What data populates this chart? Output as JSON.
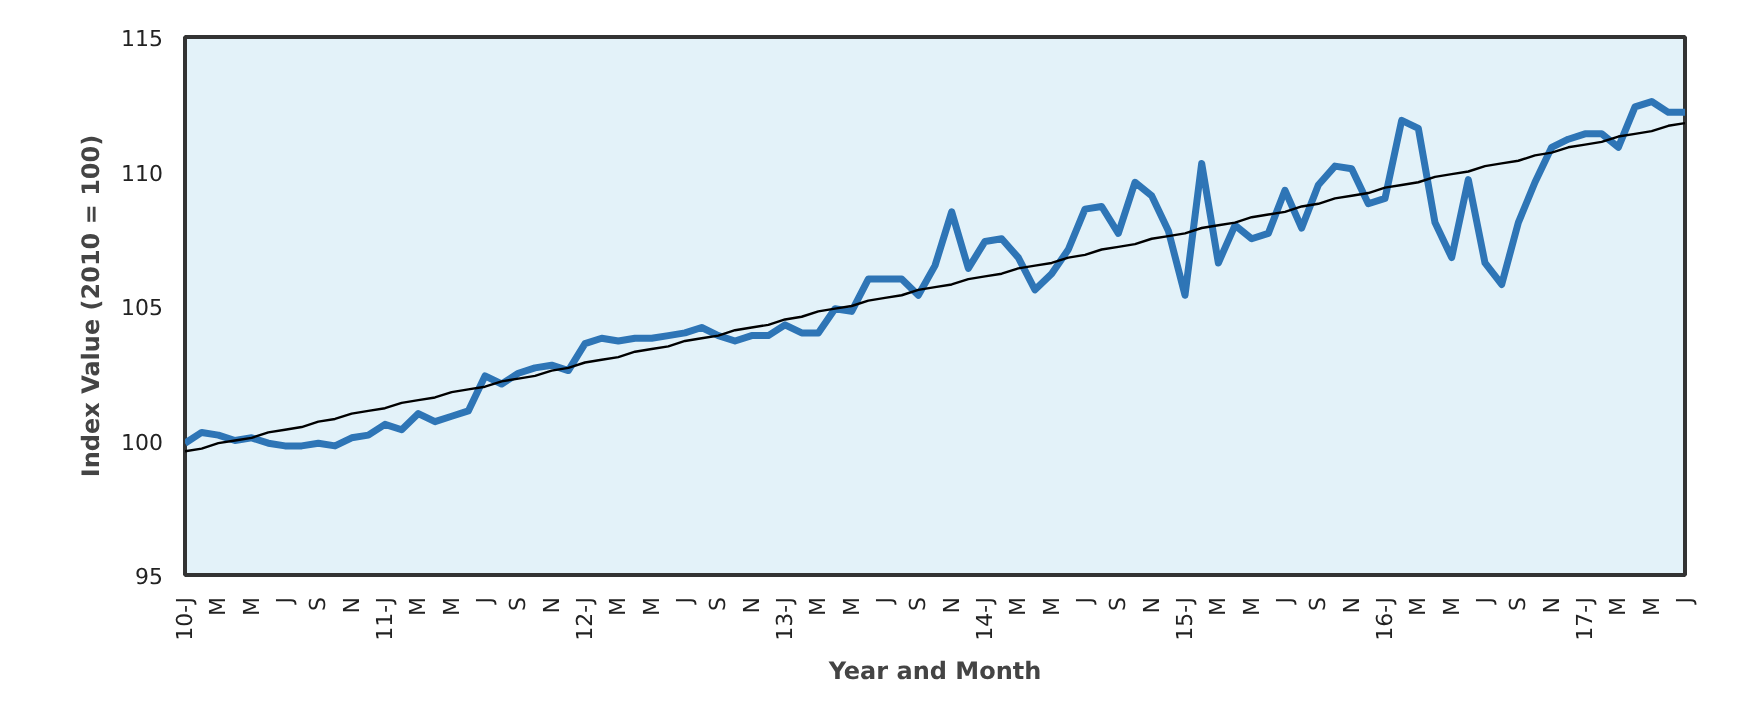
{
  "chart_data": {
    "type": "line",
    "xlabel": "Year and Month",
    "ylabel": "Index Value (2010 = 100)",
    "categories": [
      "10-J",
      null,
      "M",
      null,
      "M",
      null,
      "J",
      null,
      "S",
      null,
      "N",
      null,
      "11-J",
      null,
      "M",
      null,
      "M",
      null,
      "J",
      null,
      "S",
      null,
      "N",
      null,
      "12-J",
      null,
      "M",
      null,
      "M",
      null,
      "J",
      null,
      "S",
      null,
      "N",
      null,
      "13-J",
      null,
      "M",
      null,
      "M",
      null,
      "J",
      null,
      "S",
      null,
      "N",
      null,
      "14-J",
      null,
      "M",
      null,
      "M",
      null,
      "J",
      null,
      "S",
      null,
      "N",
      null,
      "15-J",
      null,
      "M",
      null,
      "M",
      null,
      "J",
      null,
      "S",
      null,
      "N",
      null,
      "16-J",
      null,
      "M",
      null,
      "M",
      null,
      "J",
      null,
      "S",
      null,
      "N",
      null,
      "17-J",
      null,
      "M",
      null,
      "M",
      null,
      "J"
    ],
    "series": [
      {
        "color": "#2e75b6",
        "values": [
          99.9,
          100.3,
          100.2,
          100.0,
          100.1,
          99.9,
          99.8,
          99.8,
          99.9,
          99.8,
          100.1,
          100.2,
          100.6,
          100.4,
          101.0,
          100.7,
          100.9,
          101.1,
          102.4,
          102.1,
          102.5,
          102.7,
          102.8,
          102.6,
          103.6,
          103.8,
          103.7,
          103.8,
          103.8,
          103.9,
          104.0,
          104.2,
          103.9,
          103.7,
          103.9,
          103.9,
          104.3,
          104.0,
          104.0,
          104.9,
          104.8,
          106.0,
          106.0,
          106.0,
          105.4,
          106.5,
          108.5,
          106.4,
          107.4,
          107.5,
          106.8,
          105.6,
          106.2,
          107.1,
          108.6,
          108.7,
          107.7,
          109.6,
          109.1,
          107.8,
          105.4,
          110.3,
          106.6,
          108.0,
          107.5,
          107.7,
          109.3,
          107.9,
          109.5,
          110.2,
          110.1,
          108.8,
          109.0,
          111.9,
          111.6,
          108.1,
          106.8,
          109.7,
          106.6,
          105.8,
          108.1,
          109.6,
          110.9,
          111.2,
          111.4,
          111.4,
          110.9,
          112.4,
          112.6,
          112.2,
          112.2
        ]
      },
      {
        "color": "#000000",
        "values": [
          99.6,
          99.7,
          99.9,
          100.0,
          100.1,
          100.3,
          100.4,
          100.5,
          100.7,
          100.8,
          101.0,
          101.1,
          101.2,
          101.4,
          101.5,
          101.6,
          101.8,
          101.9,
          102.0,
          102.2,
          102.3,
          102.4,
          102.6,
          102.7,
          102.9,
          103.0,
          103.1,
          103.3,
          103.4,
          103.5,
          103.7,
          103.8,
          103.9,
          104.1,
          104.2,
          104.3,
          104.5,
          104.6,
          104.8,
          104.9,
          105.0,
          105.2,
          105.3,
          105.4,
          105.6,
          105.7,
          105.8,
          106.0,
          106.1,
          106.2,
          106.4,
          106.5,
          106.6,
          106.8,
          106.9,
          107.1,
          107.2,
          107.3,
          107.5,
          107.6,
          107.7,
          107.9,
          108.0,
          108.1,
          108.3,
          108.4,
          108.5,
          108.7,
          108.8,
          109.0,
          109.1,
          109.2,
          109.4,
          109.5,
          109.6,
          109.8,
          109.9,
          110.0,
          110.2,
          110.3,
          110.4,
          110.6,
          110.7,
          110.9,
          111.0,
          111.1,
          111.3,
          111.4,
          111.5,
          111.7,
          111.8
        ]
      }
    ],
    "ylim": [
      95,
      115
    ],
    "yticks": [
      95,
      100,
      105,
      110,
      115
    ],
    "grid": false
  }
}
